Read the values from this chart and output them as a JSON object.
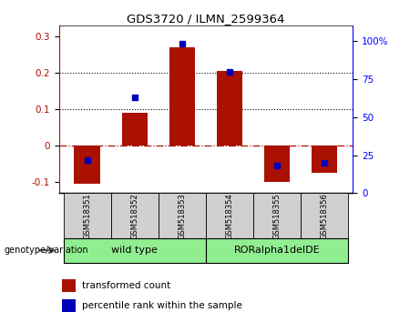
{
  "title": "GDS3720 / ILMN_2599364",
  "samples": [
    "GSM518351",
    "GSM518352",
    "GSM518353",
    "GSM518354",
    "GSM518355",
    "GSM518356"
  ],
  "bar_values": [
    -0.105,
    0.09,
    0.27,
    0.205,
    -0.1,
    -0.075
  ],
  "percentile_values": [
    22,
    63,
    98,
    80,
    18,
    20
  ],
  "group_bg_color": "#90EE90",
  "bar_color": "#AA1100",
  "dot_color": "#0000BB",
  "ylim_left": [
    -0.13,
    0.33
  ],
  "ylim_right": [
    0,
    110
  ],
  "yticks_left": [
    -0.1,
    0.0,
    0.1,
    0.2,
    0.3
  ],
  "yticks_right": [
    0,
    25,
    50,
    75,
    100
  ],
  "ytick_labels_right": [
    "0",
    "25",
    "50",
    "75",
    "100%"
  ],
  "hline_y": [
    0.1,
    0.2
  ],
  "zero_line_y": 0.0,
  "sample_box_color": "#D0D0D0",
  "genotype_label": "genotype/variation",
  "legend_items": [
    "transformed count",
    "percentile rank within the sample"
  ],
  "bar_width": 0.55,
  "group_ranges": [
    [
      -0.5,
      2.5,
      "wild type"
    ],
    [
      2.5,
      5.5,
      "RORalpha1delDE"
    ]
  ]
}
